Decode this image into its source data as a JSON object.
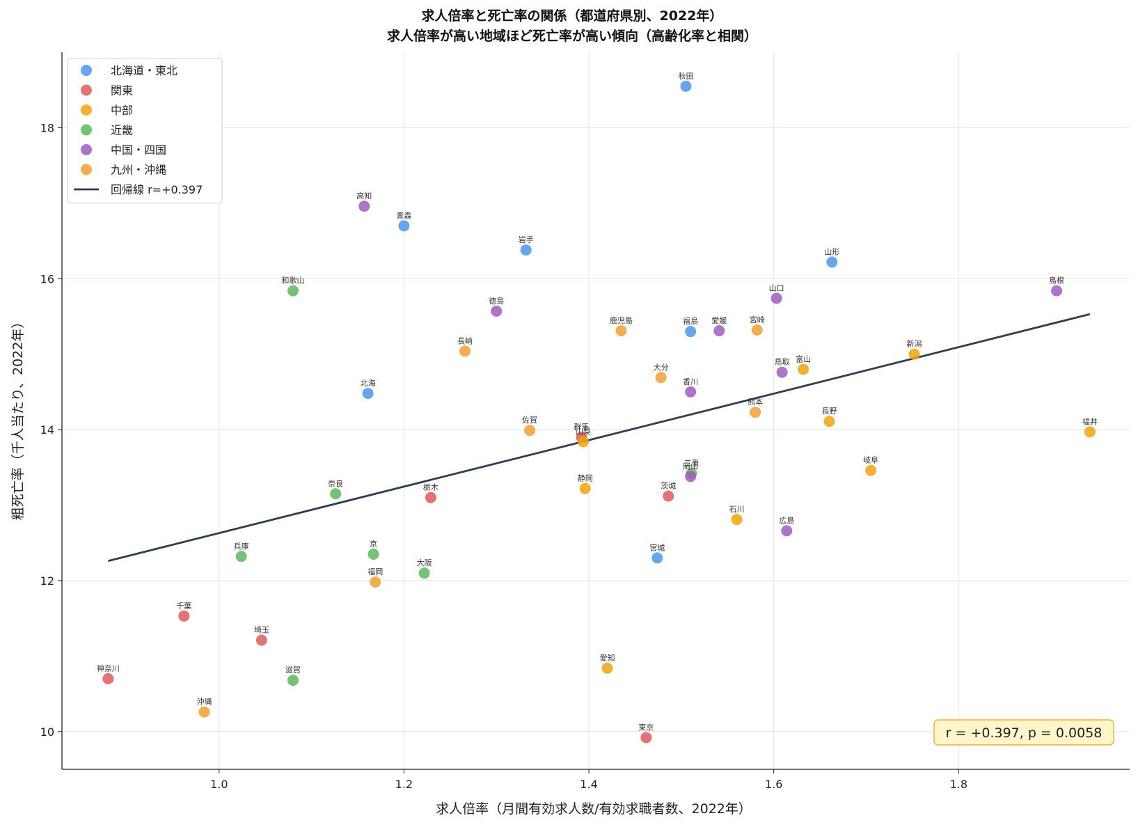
{
  "chart_data": {
    "type": "scatter",
    "title": "求人倍率と死亡率の関係（都道府県別、2022年）",
    "subtitle": "求人倍率が高い地域ほど死亡率が高い傾向（高齢化率と相関）",
    "xlabel": "求人倍率（月間有効求人数/有効求職者数、2022年）",
    "ylabel": "粗死亡率（千人当たり、2022年）",
    "xlim": [
      0.83,
      1.985
    ],
    "ylim": [
      9.5,
      19.0
    ],
    "xticks": [
      1.0,
      1.2,
      1.4,
      1.6,
      1.8
    ],
    "xtick_labels": [
      "1.0",
      "1.2",
      "1.4",
      "1.6",
      "1.8"
    ],
    "yticks": [
      10,
      12,
      14,
      16,
      18
    ],
    "ytick_labels": [
      "10",
      "12",
      "14",
      "16",
      "18"
    ],
    "grid": true,
    "legend_position": "top-left",
    "series": [
      {
        "name": "北海道・東北",
        "color": "#4a98ec",
        "points": [
          {
            "label": "秋田",
            "x": 1.505,
            "y": 18.55
          },
          {
            "label": "青森",
            "x": 1.2,
            "y": 16.7
          },
          {
            "label": "岩手",
            "x": 1.332,
            "y": 16.38
          },
          {
            "label": "山形",
            "x": 1.663,
            "y": 16.22
          },
          {
            "label": "福島",
            "x": 1.51,
            "y": 15.3
          },
          {
            "label": "北海",
            "x": 1.161,
            "y": 14.48
          },
          {
            "label": "宮城",
            "x": 1.474,
            "y": 12.3
          }
        ]
      },
      {
        "name": "関東",
        "color": "#e05a5a",
        "points": [
          {
            "label": "群馬",
            "x": 1.392,
            "y": 13.9
          },
          {
            "label": "栃木",
            "x": 1.229,
            "y": 13.1
          },
          {
            "label": "茨城",
            "x": 1.486,
            "y": 13.12
          },
          {
            "label": "千葉",
            "x": 0.962,
            "y": 11.53
          },
          {
            "label": "埼玉",
            "x": 1.046,
            "y": 11.21
          },
          {
            "label": "神奈川",
            "x": 0.88,
            "y": 10.7
          },
          {
            "label": "東京",
            "x": 1.462,
            "y": 9.92
          }
        ]
      },
      {
        "name": "中部",
        "color": "#f0a30a",
        "points": [
          {
            "label": "新潟",
            "x": 1.752,
            "y": 15.0
          },
          {
            "label": "富山",
            "x": 1.632,
            "y": 14.8
          },
          {
            "label": "長野",
            "x": 1.66,
            "y": 14.11
          },
          {
            "label": "福井",
            "x": 1.942,
            "y": 13.97
          },
          {
            "label": "山梨",
            "x": 1.394,
            "y": 13.84
          },
          {
            "label": "岐阜",
            "x": 1.705,
            "y": 13.46
          },
          {
            "label": "静岡",
            "x": 1.396,
            "y": 13.22
          },
          {
            "label": "石川",
            "x": 1.56,
            "y": 12.81
          },
          {
            "label": "愛知",
            "x": 1.42,
            "y": 10.84
          }
        ]
      },
      {
        "name": "近畿",
        "color": "#5cb85c",
        "points": [
          {
            "label": "和歌山",
            "x": 1.08,
            "y": 15.84
          },
          {
            "label": "三重",
            "x": 1.511,
            "y": 13.42
          },
          {
            "label": "奈良",
            "x": 1.126,
            "y": 13.15
          },
          {
            "label": "兵庫",
            "x": 1.024,
            "y": 12.32
          },
          {
            "label": "京",
            "x": 1.167,
            "y": 12.35
          },
          {
            "label": "大阪",
            "x": 1.222,
            "y": 12.1
          },
          {
            "label": "滋賀",
            "x": 1.08,
            "y": 10.68
          }
        ]
      },
      {
        "name": "中国・四国",
        "color": "#a05cc0",
        "points": [
          {
            "label": "高知",
            "x": 1.157,
            "y": 16.96
          },
          {
            "label": "徳島",
            "x": 1.3,
            "y": 15.57
          },
          {
            "label": "愛媛",
            "x": 1.541,
            "y": 15.31
          },
          {
            "label": "山口",
            "x": 1.603,
            "y": 15.74
          },
          {
            "label": "島根",
            "x": 1.906,
            "y": 15.84
          },
          {
            "label": "鳥取",
            "x": 1.609,
            "y": 14.76
          },
          {
            "label": "香川",
            "x": 1.51,
            "y": 14.5
          },
          {
            "label": "岡山",
            "x": 1.51,
            "y": 13.38
          },
          {
            "label": "広島",
            "x": 1.614,
            "y": 12.66
          }
        ]
      },
      {
        "name": "九州・沖縄",
        "color": "#f0a030",
        "points": [
          {
            "label": "鹿児島",
            "x": 1.435,
            "y": 15.31
          },
          {
            "label": "宮崎",
            "x": 1.582,
            "y": 15.32
          },
          {
            "label": "長崎",
            "x": 1.266,
            "y": 15.04
          },
          {
            "label": "大分",
            "x": 1.478,
            "y": 14.69
          },
          {
            "label": "熊本",
            "x": 1.58,
            "y": 14.23
          },
          {
            "label": "佐賀",
            "x": 1.336,
            "y": 13.99
          },
          {
            "label": "福岡",
            "x": 1.169,
            "y": 11.98
          },
          {
            "label": "沖縄",
            "x": 0.984,
            "y": 10.26
          }
        ]
      }
    ],
    "regression": {
      "name": "回帰線 r=+0.397",
      "color": "#2c3e50",
      "x": [
        0.88,
        1.942
      ],
      "y": [
        12.26,
        15.53
      ]
    },
    "annotation": "r = +0.397, p = 0.0058"
  }
}
